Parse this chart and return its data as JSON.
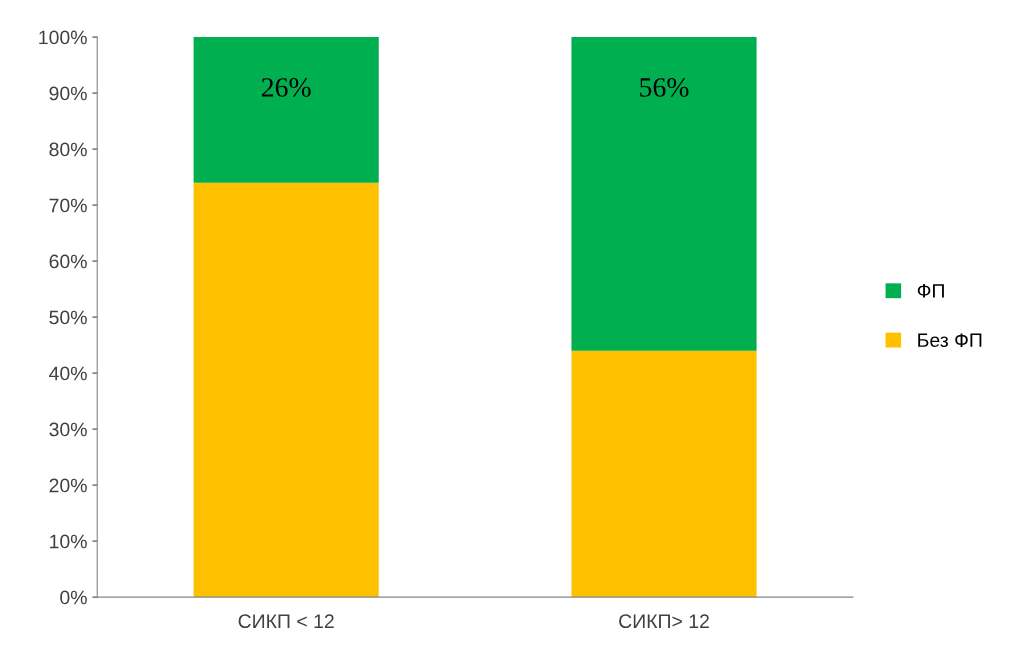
{
  "chart_data": {
    "type": "bar",
    "stacked": true,
    "categories": [
      "СИКП < 12",
      "СИКП> 12"
    ],
    "series": [
      {
        "name": "Без ФП",
        "color": "#ffc000",
        "values": [
          74,
          44
        ]
      },
      {
        "name": "ФП",
        "color": "#00b050",
        "values": [
          26,
          56
        ],
        "value_labels": [
          "26%",
          "56%"
        ]
      }
    ],
    "ylim": [
      0,
      100
    ],
    "yticks": [
      {
        "value": 0,
        "label": "0%"
      },
      {
        "value": 10,
        "label": "10%"
      },
      {
        "value": 20,
        "label": "20%"
      },
      {
        "value": 30,
        "label": "30%"
      },
      {
        "value": 40,
        "label": "40%"
      },
      {
        "value": 50,
        "label": "50%"
      },
      {
        "value": 60,
        "label": "60%"
      },
      {
        "value": 70,
        "label": "70%"
      },
      {
        "value": 80,
        "label": "80%"
      },
      {
        "value": 90,
        "label": "90%"
      },
      {
        "value": 100,
        "label": "100%"
      }
    ],
    "grid": false,
    "legend": "right"
  }
}
